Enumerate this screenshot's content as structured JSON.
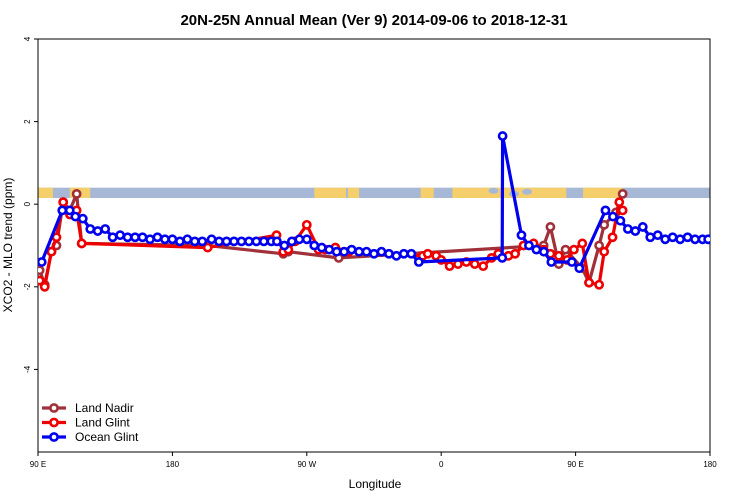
{
  "chart_data": {
    "type": "line",
    "title": "20N-25N Annual Mean (Ver 9)   2014-09-06 to 2018-12-31",
    "xlabel": "Longitude",
    "ylabel": "XCO2 - MLO trend (ppm)",
    "xlim": [
      0,
      360
    ],
    "ylim": [
      -6,
      4
    ],
    "x_ticks": [
      {
        "value": 0,
        "label": "90 E"
      },
      {
        "value": 72,
        "label": "180"
      },
      {
        "value": 144,
        "label": "90 W"
      },
      {
        "value": 216,
        "label": "0"
      },
      {
        "value": 288,
        "label": "90 E"
      },
      {
        "value": 360,
        "label": "180"
      }
    ],
    "y_ticks": [
      {
        "value": 4,
        "label": "4"
      },
      {
        "value": 2,
        "label": "2"
      },
      {
        "value": 0,
        "label": "0"
      },
      {
        "value": -2,
        "label": "-2"
      },
      {
        "value": -4,
        "label": "-4"
      }
    ],
    "map_band": {
      "y_range": [
        0.15,
        0.4
      ],
      "ocean_color": "#a7b8d6",
      "land_color": "#f5cf6b"
    },
    "series": [
      {
        "name": "Land Nadir",
        "color": "#a0303a",
        "x": [
          0.9,
          3.6,
          7.2,
          9.9,
          13.5,
          17.1,
          20.7,
          23.4,
          90.9,
          131.4,
          134.1,
          161.1,
          270.9,
          274.5,
          279.0,
          282.6,
          291.6,
          295.2,
          300.6,
          303.3,
          309.6,
          313.2
        ],
        "y": [
          -1.6,
          -1.95,
          -1.15,
          -1.0,
          0.05,
          -0.15,
          0.25,
          -0.95,
          -1.0,
          -1.2,
          -1.15,
          -1.3,
          -1.0,
          -0.55,
          -1.45,
          -1.1,
          -1.55,
          -1.9,
          -1.0,
          -0.5,
          -0.2,
          0.25
        ]
      },
      {
        "name": "Land Glint",
        "color": "#ee0000",
        "x": [
          0.9,
          3.6,
          7.2,
          9.9,
          13.5,
          17.1,
          20.7,
          23.4,
          90.9,
          127.8,
          131.4,
          134.1,
          137.7,
          144.0,
          150.3,
          153.9,
          159.3,
          166.5,
          206.1,
          208.8,
          213.3,
          216.0,
          220.5,
          225.0,
          229.5,
          234.0,
          238.5,
          243.0,
          246.6,
          252.0,
          255.6,
          260.1,
          265.5,
          270.9,
          274.5,
          279.0,
          283.5,
          287.1,
          291.6,
          295.2,
          300.6,
          303.3,
          307.8,
          311.4,
          313.2
        ],
        "y": [
          -1.85,
          -2.0,
          -1.15,
          -0.8,
          0.05,
          -0.25,
          -0.15,
          -0.95,
          -1.05,
          -0.75,
          -1.15,
          -1.1,
          -0.9,
          -0.5,
          -1.1,
          -1.1,
          -1.05,
          -1.15,
          -1.25,
          -1.2,
          -1.25,
          -1.35,
          -1.5,
          -1.45,
          -1.4,
          -1.45,
          -1.5,
          -1.3,
          -1.2,
          -1.25,
          -1.2,
          -1.0,
          -0.95,
          -1.1,
          -1.2,
          -1.25,
          -1.35,
          -1.1,
          -0.95,
          -1.9,
          -1.95,
          -1.15,
          -0.8,
          0.05,
          -0.15
        ]
      },
      {
        "name": "Ocean Glint",
        "color": "#0000ee",
        "x": [
          2.0,
          13.0,
          17.0,
          20.0,
          24.0,
          28.0,
          32.0,
          36.0,
          40.0,
          44.0,
          48.0,
          52.0,
          56.0,
          60.0,
          64.0,
          68.0,
          72.0,
          76.0,
          80.0,
          84.0,
          88.0,
          93.0,
          97.0,
          101.0,
          105.0,
          109.0,
          113.0,
          117.0,
          121.0,
          125.0,
          128.0,
          132.0,
          136.0,
          140.0,
          144.0,
          148.0,
          152.0,
          156.0,
          160.0,
          164.0,
          168.0,
          172.0,
          176.0,
          180.0,
          184.0,
          188.0,
          192.0,
          196.0,
          200.0,
          204.0,
          248.7,
          248.9,
          259.0,
          263.0,
          267.0,
          271.0,
          275.0,
          286.0,
          290.0,
          304.0,
          308.0,
          312.0,
          316.0,
          320.0,
          324.0,
          328.0,
          332.0,
          336.0,
          340.0,
          344.0,
          348.0,
          352.0,
          356.0,
          359.0
        ],
        "y": [
          -1.4,
          -0.15,
          -0.15,
          -0.3,
          -0.35,
          -0.6,
          -0.65,
          -0.6,
          -0.8,
          -0.75,
          -0.8,
          -0.8,
          -0.8,
          -0.85,
          -0.8,
          -0.85,
          -0.85,
          -0.9,
          -0.85,
          -0.9,
          -0.9,
          -0.85,
          -0.9,
          -0.9,
          -0.9,
          -0.9,
          -0.9,
          -0.9,
          -0.9,
          -0.9,
          -0.9,
          -1.0,
          -0.9,
          -0.85,
          -0.85,
          -1.0,
          -1.05,
          -1.1,
          -1.15,
          -1.15,
          -1.1,
          -1.15,
          -1.15,
          -1.2,
          -1.15,
          -1.2,
          -1.25,
          -1.2,
          -1.2,
          -1.4,
          -1.3,
          1.65,
          -0.75,
          -1.0,
          -1.1,
          -1.15,
          -1.4,
          -1.4,
          -1.55,
          -0.15,
          -0.3,
          -0.4,
          -0.6,
          -0.65,
          -0.55,
          -0.8,
          -0.75,
          -0.85,
          -0.8,
          -0.85,
          -0.8,
          -0.85,
          -0.85,
          -0.85
        ]
      }
    ],
    "legend": {
      "position": "bottom-left"
    }
  }
}
